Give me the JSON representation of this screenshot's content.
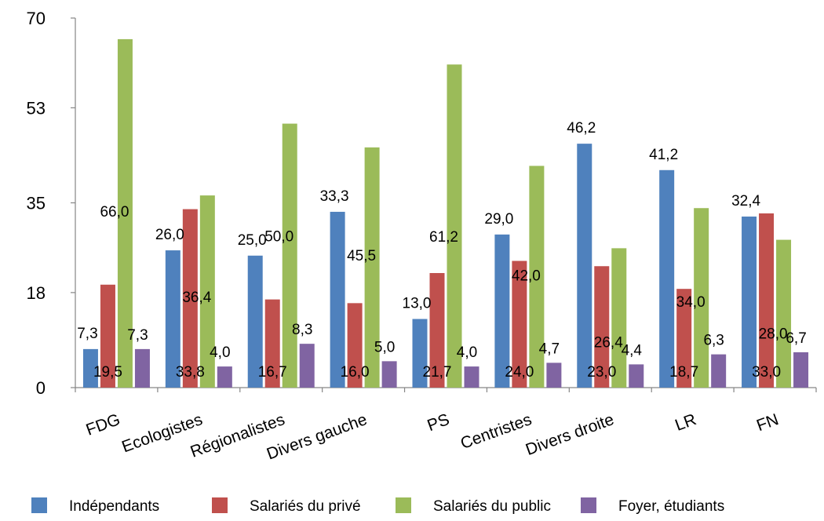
{
  "chart_data": {
    "type": "bar",
    "categories": [
      "FDG",
      "Ecologistes",
      "Régionalistes",
      "Divers gauche",
      "PS",
      "Centristes",
      "Divers droite",
      "LR",
      "FN"
    ],
    "series": [
      {
        "name": "Indépendants",
        "color": "#4f81bd",
        "values": [
          7.3,
          26.0,
          25.0,
          33.3,
          13.0,
          29.0,
          46.2,
          41.2,
          32.4
        ],
        "labels": [
          "7,3",
          "26,0",
          "25,0",
          "33,3",
          "13,0",
          "29,0",
          "46,2",
          "41,2",
          "32,4"
        ]
      },
      {
        "name": "Salariés du privé",
        "color": "#c0504d",
        "values": [
          19.5,
          33.8,
          16.7,
          16.0,
          21.7,
          24.0,
          23.0,
          18.7,
          33.0
        ],
        "labels": [
          "19,5",
          "33,8",
          "16,7",
          "16,0",
          "21,7",
          "24,0",
          "23,0",
          "18,7",
          "33,0"
        ]
      },
      {
        "name": "Salariés du public",
        "color": "#9bbb59",
        "values": [
          66.0,
          36.4,
          50.0,
          45.5,
          61.2,
          42.0,
          26.4,
          34.0,
          28.0
        ],
        "labels": [
          "66,0",
          "36,4",
          "50,0",
          "45,5",
          "61,2",
          "42,0",
          "26,4",
          "34,0",
          "28,0"
        ]
      },
      {
        "name": "Foyer, étudiants",
        "color": "#8064a2",
        "values": [
          7.3,
          4.0,
          8.3,
          5.0,
          4.0,
          4.7,
          4.4,
          6.3,
          6.7
        ],
        "labels": [
          "7,3",
          "4,0",
          "8,3",
          "5,0",
          "4,0",
          "4,7",
          "4,4",
          "6,3",
          "6,7"
        ]
      }
    ],
    "yticks": [
      0,
      18,
      35,
      53,
      70
    ],
    "ylim": [
      0,
      70
    ],
    "legend": "bottom",
    "grid": false
  }
}
